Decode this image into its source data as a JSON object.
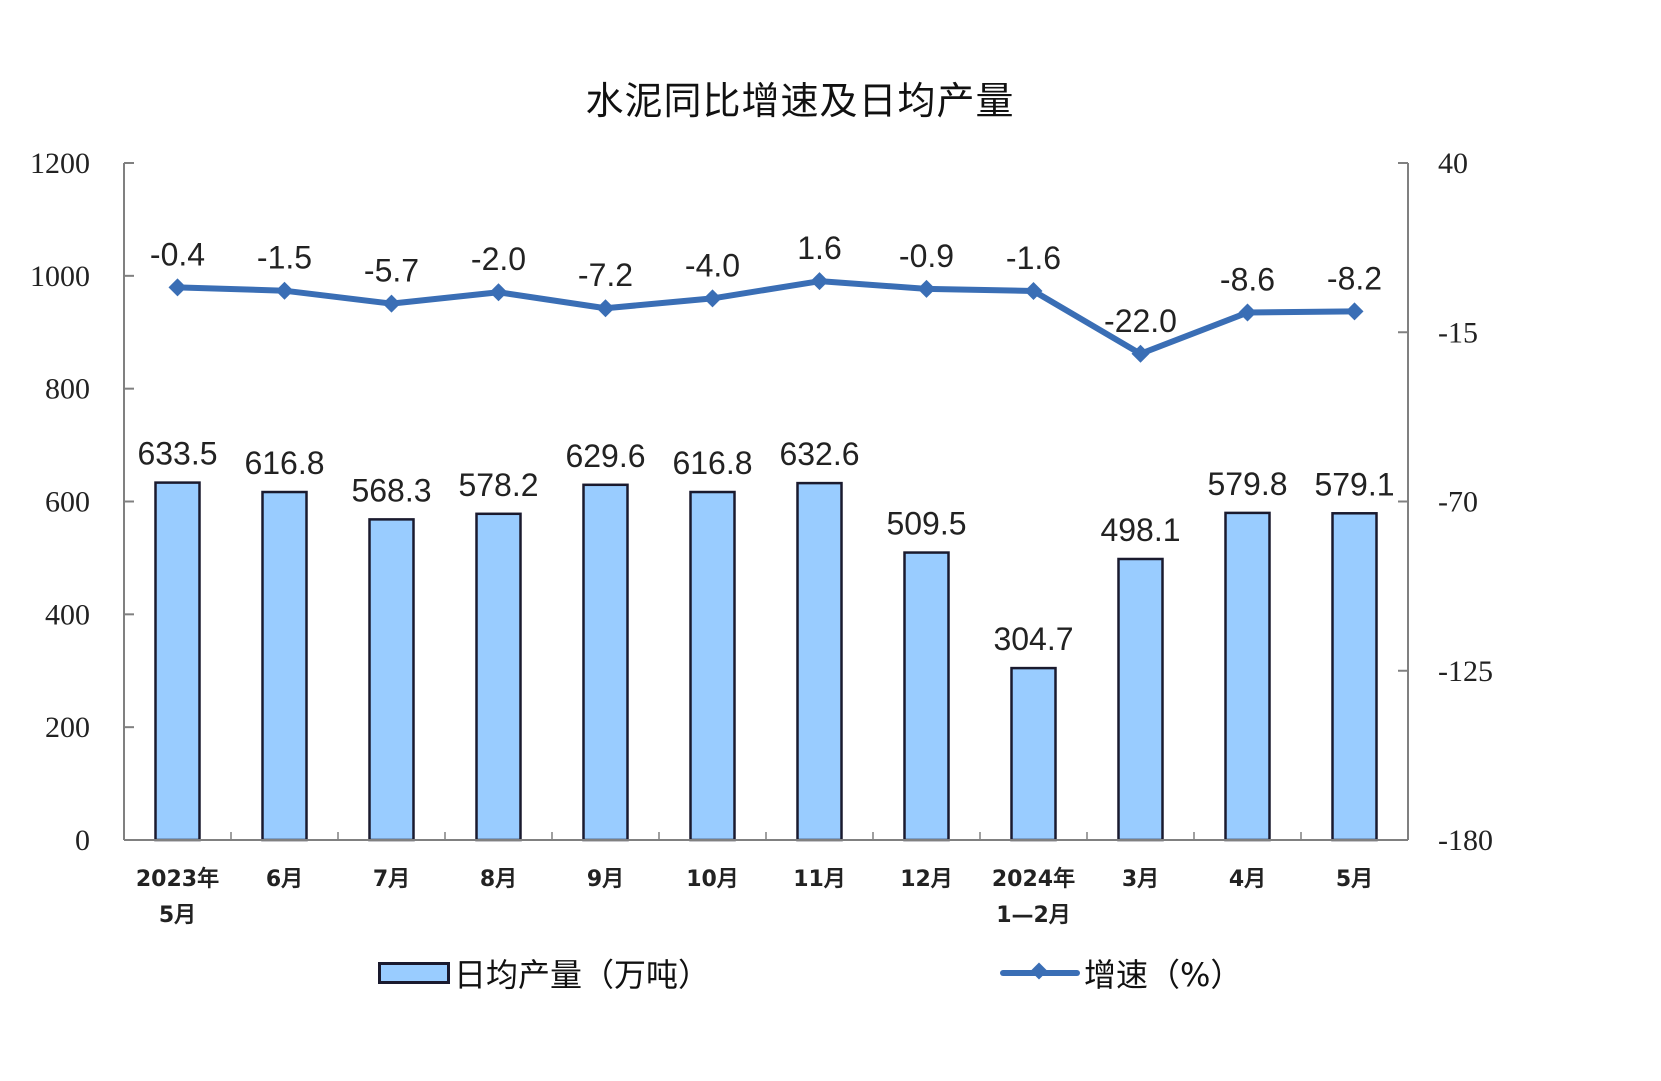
{
  "title": "水泥同比增速及日均产量",
  "legend": {
    "bar_label": "日均产量（万吨）",
    "line_label": "增速（%）"
  },
  "colors": {
    "bar_fill": "#99CCFF",
    "bar_border": "#1A1A2E",
    "line": "#3A6EB5",
    "axis": "#808080"
  },
  "axes": {
    "left_ticks": [
      "1200",
      "1000",
      "800",
      "600",
      "400",
      "200",
      "0"
    ],
    "right_ticks": [
      "40",
      "-15",
      "-70",
      "-125",
      "-180"
    ]
  },
  "chart_data": {
    "type": "bar+line",
    "title": "水泥同比增速及日均产量",
    "categories": [
      "2023年5月",
      "6月",
      "7月",
      "8月",
      "9月",
      "10月",
      "11月",
      "12月",
      "2024年1—2月",
      "3月",
      "4月",
      "5月"
    ],
    "category_lines": [
      [
        "2023年",
        "5月"
      ],
      [
        "6月"
      ],
      [
        "7月"
      ],
      [
        "8月"
      ],
      [
        "9月"
      ],
      [
        "10月"
      ],
      [
        "11月"
      ],
      [
        "12月"
      ],
      [
        "2024年",
        "1—2月"
      ],
      [
        "3月"
      ],
      [
        "4月"
      ],
      [
        "5月"
      ]
    ],
    "series": [
      {
        "name": "日均产量（万吨）",
        "type": "bar",
        "axis": "left",
        "values": [
          633.5,
          616.8,
          568.3,
          578.2,
          629.6,
          616.8,
          632.6,
          509.5,
          304.7,
          498.1,
          579.8,
          579.1
        ],
        "labels": [
          "633.5",
          "616.8",
          "568.3",
          "578.2",
          "629.6",
          "616.8",
          "632.6",
          "509.5",
          "304.7",
          "498.1",
          "579.8",
          "579.1"
        ]
      },
      {
        "name": "增速（%）",
        "type": "line",
        "axis": "right",
        "values": [
          -0.4,
          -1.5,
          -5.7,
          -2.0,
          -7.2,
          -4.0,
          1.6,
          -0.9,
          -1.6,
          -22.0,
          -8.6,
          -8.2
        ],
        "labels": [
          "-0.4",
          "-1.5",
          "-5.7",
          "-2.0",
          "-7.2",
          "-4.0",
          "1.6",
          "-0.9",
          "-1.6",
          "-22.0",
          "-8.6",
          "-8.2"
        ]
      }
    ],
    "xlabel": "",
    "ylabel_left": "",
    "ylabel_right": "",
    "ylim_left": [
      0,
      1200
    ],
    "yticks_left": [
      0,
      200,
      400,
      600,
      800,
      1000,
      1200
    ],
    "ylim_right": [
      -180,
      40
    ],
    "yticks_right": [
      -180,
      -125,
      -70,
      -15,
      40
    ],
    "grid": false,
    "legend_position": "bottom"
  }
}
